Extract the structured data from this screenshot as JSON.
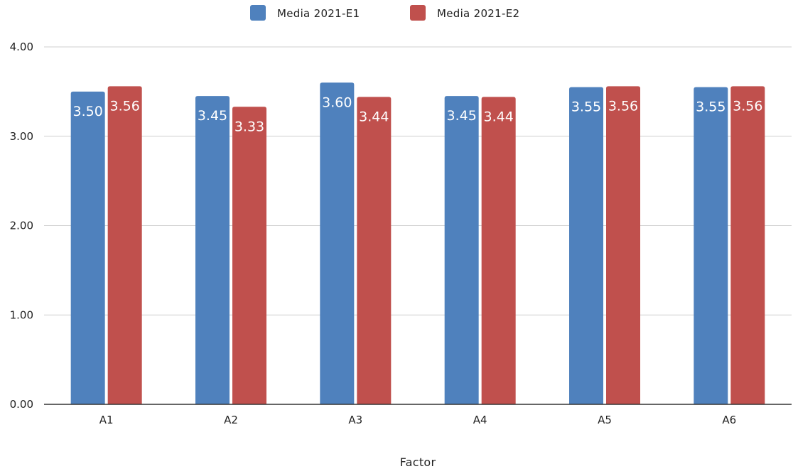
{
  "chart_data": {
    "type": "bar",
    "title": "",
    "xlabel": "Factor",
    "ylabel": "",
    "categories": [
      "A1",
      "A2",
      "A3",
      "A4",
      "A5",
      "A6"
    ],
    "series": [
      {
        "name": "Media 2021-E1",
        "color": "#4f81bd",
        "values": [
          3.5,
          3.45,
          3.6,
          3.45,
          3.55,
          3.55
        ],
        "labels": [
          "3.50",
          "3.45",
          "3.60",
          "3.45",
          "3.55",
          "3.55"
        ]
      },
      {
        "name": "Media 2021-E2",
        "color": "#c0504d",
        "values": [
          3.56,
          3.33,
          3.44,
          3.44,
          3.56,
          3.56
        ],
        "labels": [
          "3.56",
          "3.33",
          "3.44",
          "3.44",
          "3.56",
          "3.56"
        ]
      }
    ],
    "ylim": [
      0,
      4
    ],
    "yticks": [
      "0.00",
      "1.00",
      "2.00",
      "3.00",
      "4.00"
    ],
    "grid": true,
    "legend_position": "top-center"
  }
}
